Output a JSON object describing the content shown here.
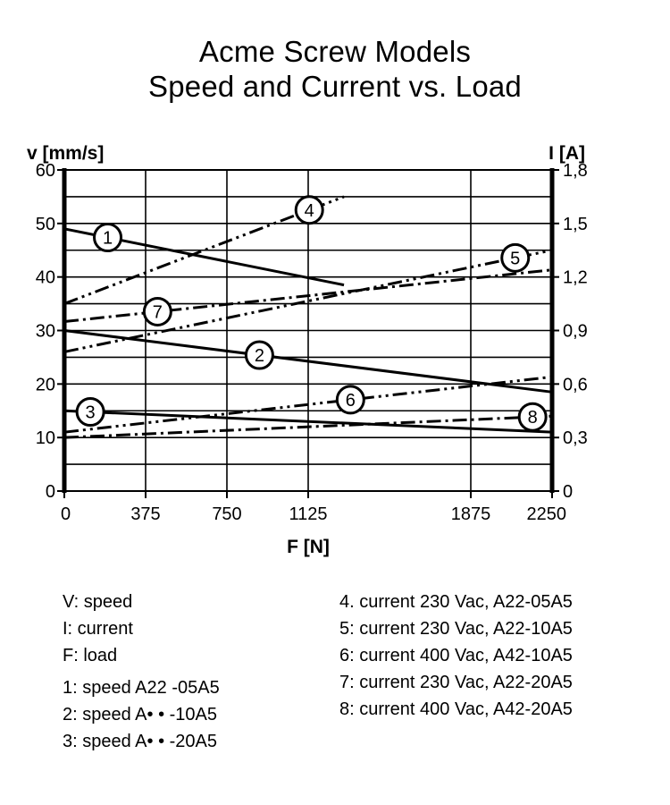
{
  "chart_data": {
    "type": "line",
    "title": [
      "Acme Screw Models",
      "Speed and Current vs. Load"
    ],
    "xlabel": "F [N]",
    "ylabel_left": "v [mm/s]",
    "ylabel_right": "I [A]",
    "x_ticks": [
      0,
      375,
      750,
      1125,
      1875,
      2250
    ],
    "x_tick_labels": [
      "0",
      "375",
      "750",
      "1125",
      "1875",
      "2250"
    ],
    "xlim": [
      0,
      2250
    ],
    "y_left_ticks": [
      0,
      10,
      20,
      30,
      40,
      50,
      60
    ],
    "y_left_tick_labels": [
      "0",
      "10",
      "20",
      "30",
      "40",
      "50",
      "60"
    ],
    "ylim_left": [
      0,
      60
    ],
    "y_right_ticks": [
      0,
      0.3,
      0.6,
      0.9,
      1.2,
      1.5,
      1.8
    ],
    "y_right_tick_labels": [
      "0",
      "0,3",
      "0,6",
      "0,9",
      "1,2",
      "1,5",
      "1,8"
    ],
    "ylim_right": [
      0,
      1.8
    ],
    "grid": true,
    "series": [
      {
        "label": "1",
        "axis": "left",
        "style": "solid",
        "x": [
          0,
          1290
        ],
        "y": [
          49,
          38.5
        ],
        "label_at": 200
      },
      {
        "label": "2",
        "axis": "left",
        "style": "solid",
        "x": [
          0,
          2250
        ],
        "y": [
          30,
          18.5
        ],
        "label_at": 900
      },
      {
        "label": "3",
        "axis": "left",
        "style": "solid",
        "x": [
          0,
          2250
        ],
        "y": [
          15,
          11
        ],
        "label_at": 120
      },
      {
        "label": "4",
        "axis": "right",
        "style": "dashdotdot",
        "x": [
          0,
          1290
        ],
        "y": [
          1.05,
          1.65
        ],
        "label_at": 1130
      },
      {
        "label": "5",
        "axis": "right",
        "style": "dashdotdot",
        "x": [
          0,
          2250
        ],
        "y": [
          0.78,
          1.35
        ],
        "label_at": 2080
      },
      {
        "label": "6",
        "axis": "right",
        "style": "dashdotdot",
        "x": [
          0,
          2250
        ],
        "y": [
          0.33,
          0.64
        ],
        "label_at": 1320
      },
      {
        "label": "7",
        "axis": "right",
        "style": "dashdot",
        "x": [
          0,
          2250
        ],
        "y": [
          0.95,
          1.24
        ],
        "label_at": 430
      },
      {
        "label": "8",
        "axis": "right",
        "style": "dashdot",
        "x": [
          0,
          2250
        ],
        "y": [
          0.3,
          0.42
        ],
        "label_at": 2160
      }
    ]
  },
  "legend": {
    "left": [
      "V: speed",
      "I: current",
      "F: load"
    ],
    "left2": [
      "1: speed A22 -05A5",
      "2: speed A• • -10A5",
      "3: speed A• • -20A5"
    ],
    "right": [
      "4. current 230 Vac, A22-05A5",
      "5: current 230 Vac, A22-10A5",
      "6: current 400 Vac, A42-10A5",
      "7: current 230 Vac, A22-20A5",
      "8: current 400 Vac, A42-20A5"
    ]
  }
}
